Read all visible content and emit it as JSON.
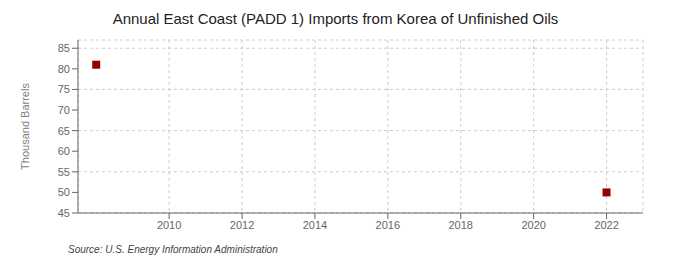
{
  "chart_data": {
    "type": "scatter",
    "title": "Annual East Coast (PADD 1) Imports from Korea of Unfinished Oils",
    "y_label": "Thousand Barrels",
    "source": "Source: U.S. Energy Information Administration",
    "x": [
      2008,
      2022
    ],
    "values": [
      81,
      50
    ],
    "color": "#990000",
    "marker": "square",
    "xlim": [
      2007.5,
      2023.0
    ],
    "ylim": [
      45,
      87
    ],
    "xticks": [
      2010,
      2012,
      2014,
      2016,
      2018,
      2020,
      2022
    ],
    "yticks": [
      45,
      50,
      55,
      60,
      65,
      70,
      75,
      80,
      85
    ],
    "grid": true
  }
}
